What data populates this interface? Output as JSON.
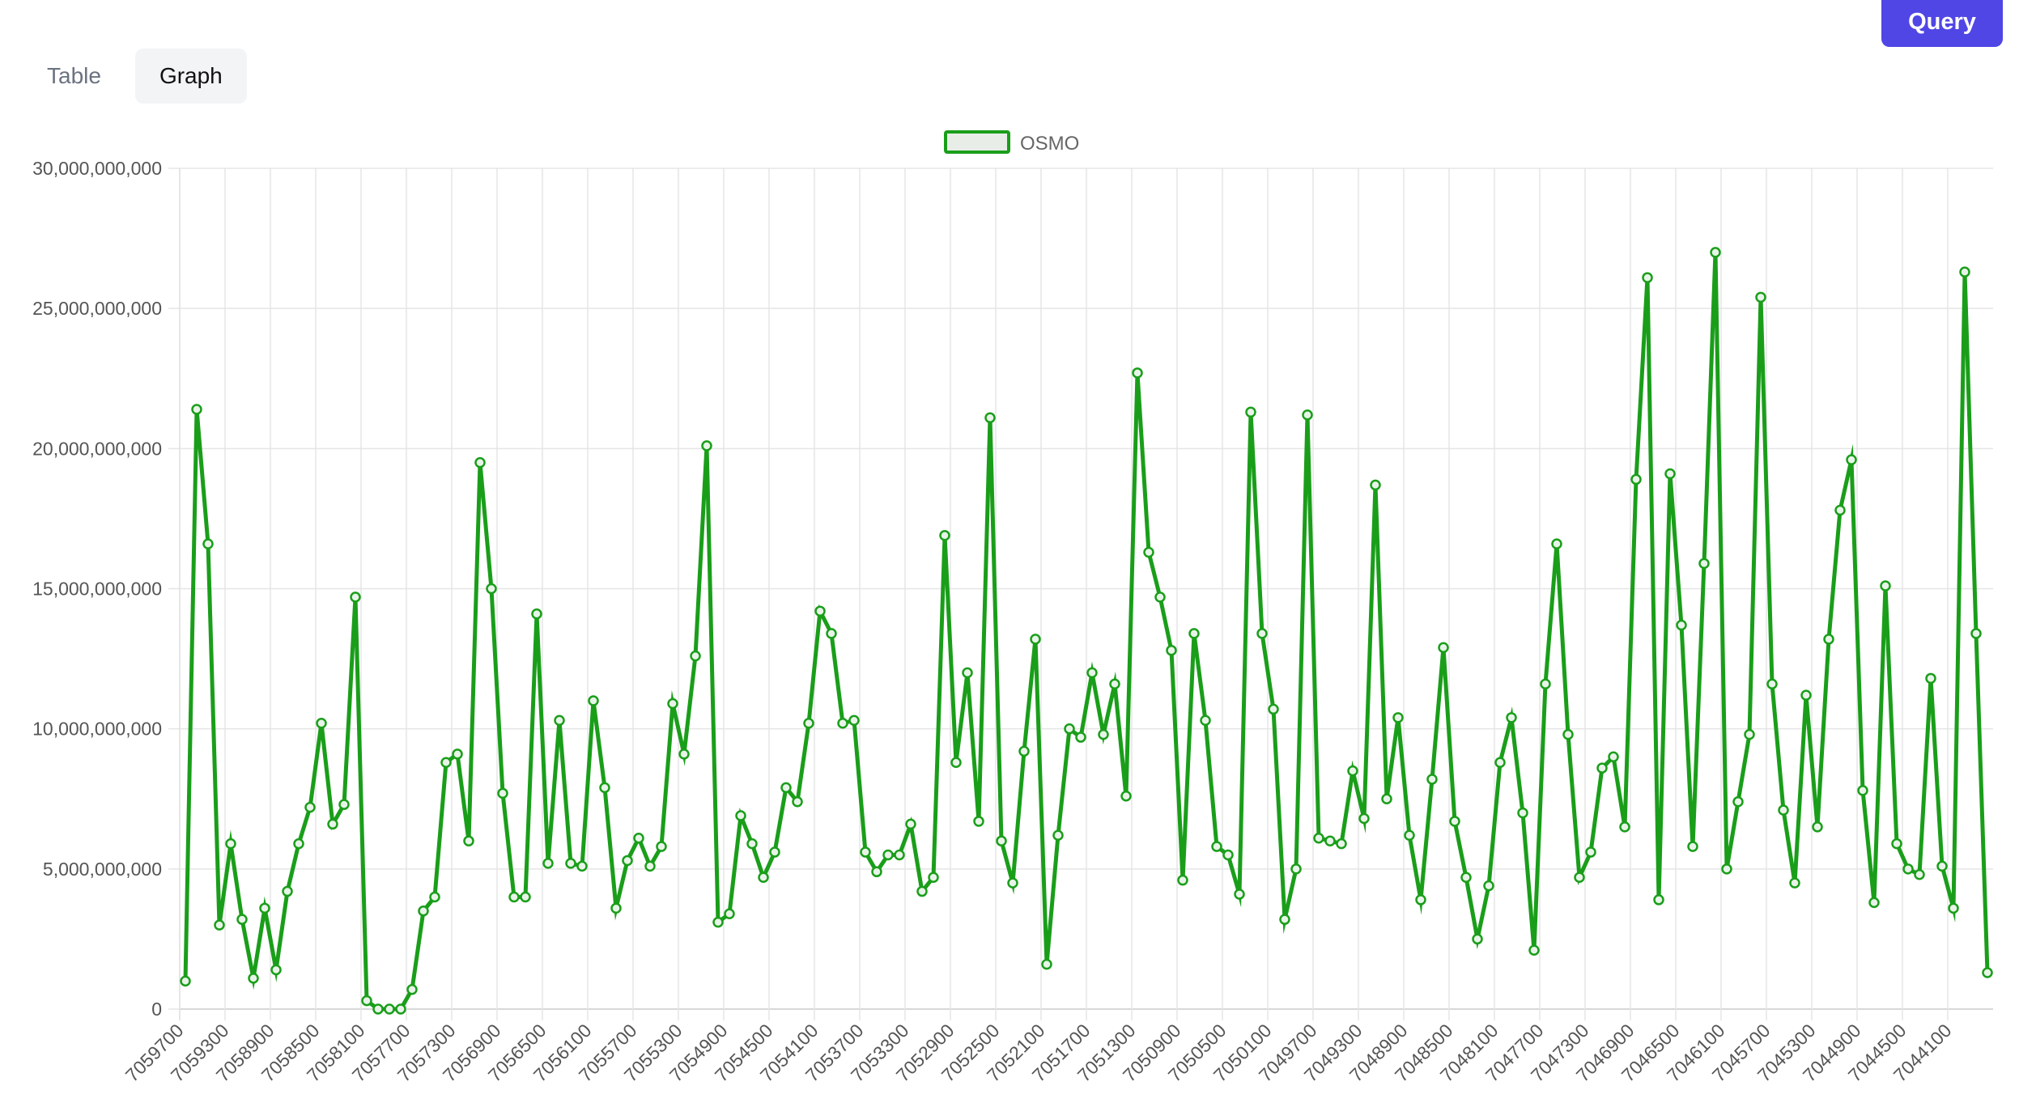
{
  "toolbar": {
    "query_label": "Query"
  },
  "tabs": [
    {
      "label": "Table",
      "active": false
    },
    {
      "label": "Graph",
      "active": true
    }
  ],
  "colors": {
    "series": "#1a9e1a",
    "legend_fill": "#e8ede8",
    "grid": "#e5e5e5",
    "accent": "#5046e5"
  },
  "chart_data": {
    "type": "line",
    "title": "",
    "xlabel": "",
    "ylabel": "",
    "ylim": [
      0,
      30000000000
    ],
    "yticks": [
      0,
      5000000000,
      10000000000,
      15000000000,
      20000000000,
      25000000000,
      30000000000
    ],
    "ytick_labels": [
      "0",
      "5,000,000,000",
      "10,000,000,000",
      "15,000,000,000",
      "20,000,000,000",
      "25,000,000,000",
      "30,000,000,000"
    ],
    "grid": true,
    "legend": "top-center",
    "x_tick_labels": [
      "7059700",
      "7059300",
      "7058900",
      "7058500",
      "7058100",
      "7057700",
      "7057300",
      "7056900",
      "7056500",
      "7056100",
      "7055700",
      "7055300",
      "7054900",
      "7054500",
      "7054100",
      "7053700",
      "7053300",
      "7052900",
      "7052500",
      "7052100",
      "7051700",
      "7051300",
      "7050900",
      "7050500",
      "7050100",
      "7049700",
      "7049300",
      "7048900",
      "7048500",
      "7048100",
      "7047700",
      "7047300",
      "7046900",
      "7046500",
      "7046100",
      "7045700",
      "7045300",
      "7044900",
      "7044500",
      "7044100"
    ],
    "series": [
      {
        "name": "OSMO",
        "values": [
          1000000000,
          21400000000,
          16600000000,
          3000000000,
          5900000000,
          3200000000,
          1100000000,
          3600000000,
          1400000000,
          4200000000,
          5900000000,
          7200000000,
          10200000000,
          6600000000,
          7300000000,
          14700000000,
          300000000,
          0,
          0,
          0,
          700000000,
          3500000000,
          4000000000,
          8800000000,
          9100000000,
          6000000000,
          19500000000,
          15000000000,
          7700000000,
          4000000000,
          4000000000,
          14100000000,
          5200000000,
          10300000000,
          5200000000,
          5100000000,
          11000000000,
          7900000000,
          3600000000,
          5300000000,
          6100000000,
          5100000000,
          5800000000,
          10900000000,
          9100000000,
          12600000000,
          20100000000,
          3100000000,
          3400000000,
          6900000000,
          5900000000,
          4700000000,
          5600000000,
          7900000000,
          7400000000,
          10200000000,
          14200000000,
          13400000000,
          10200000000,
          10300000000,
          5600000000,
          4900000000,
          5500000000,
          5500000000,
          6600000000,
          4200000000,
          4700000000,
          16900000000,
          8800000000,
          12000000000,
          6700000000,
          21100000000,
          6000000000,
          4500000000,
          9200000000,
          13200000000,
          1600000000,
          6200000000,
          10000000000,
          9700000000,
          12000000000,
          9800000000,
          11600000000,
          7600000000,
          22700000000,
          16300000000,
          14700000000,
          12800000000,
          4600000000,
          13400000000,
          10300000000,
          5800000000,
          5500000000,
          4100000000,
          21300000000,
          13400000000,
          10700000000,
          3200000000,
          5000000000,
          21200000000,
          6100000000,
          6000000000,
          5900000000,
          8500000000,
          6800000000,
          18700000000,
          7500000000,
          10400000000,
          6200000000,
          3900000000,
          8200000000,
          12900000000,
          6700000000,
          4700000000,
          2500000000,
          4400000000,
          8800000000,
          10400000000,
          7000000000,
          2100000000,
          11600000000,
          16600000000,
          9800000000,
          4700000000,
          5600000000,
          8600000000,
          9000000000,
          6500000000,
          18900000000,
          26100000000,
          3900000000,
          19100000000,
          13700000000,
          5800000000,
          15900000000,
          27000000000,
          5000000000,
          7400000000,
          9800000000,
          25400000000,
          11600000000,
          7100000000,
          4500000000,
          11200000000,
          6500000000,
          13200000000,
          17800000000,
          19600000000,
          7800000000,
          3800000000,
          15100000000,
          5900000000,
          5000000000,
          4800000000,
          11800000000,
          5100000000,
          3600000000,
          26300000000,
          13400000000,
          1300000000
        ]
      }
    ]
  }
}
